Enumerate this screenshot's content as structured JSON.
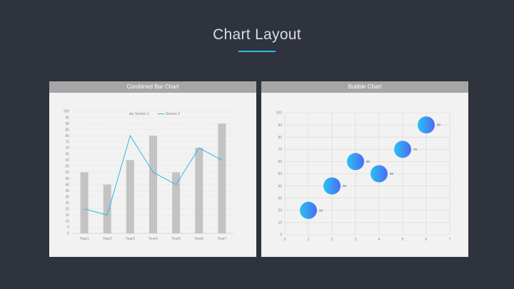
{
  "slide": {
    "title": "Chart Layout",
    "accent_color": "#2eb8e8"
  },
  "chart_data": [
    {
      "type": "bar",
      "title": "Combined Bar Chart",
      "categories": [
        "Year1",
        "Year2",
        "Year3",
        "Year4",
        "Year5",
        "Year6",
        "Year7"
      ],
      "series": [
        {
          "name": "Series 1",
          "kind": "bar",
          "color": "#c3c3c3",
          "values": [
            50,
            40,
            60,
            80,
            50,
            70,
            90
          ]
        },
        {
          "name": "Series 2",
          "kind": "line",
          "color": "#2eb8e8",
          "values": [
            20,
            15,
            80,
            50,
            40,
            70,
            60
          ]
        }
      ],
      "ylim": [
        0,
        100
      ],
      "y_ticks": [
        0,
        5,
        10,
        15,
        20,
        25,
        30,
        35,
        40,
        45,
        50,
        55,
        60,
        65,
        70,
        75,
        80,
        85,
        90,
        95,
        100
      ],
      "legend": "top-center",
      "grid": true
    },
    {
      "type": "scatter",
      "subtype": "bubble",
      "title": "Bubble Chart",
      "points": [
        {
          "x": 1,
          "y": 20,
          "label": "20"
        },
        {
          "x": 2,
          "y": 40,
          "label": "40"
        },
        {
          "x": 3,
          "y": 60,
          "label": "60"
        },
        {
          "x": 4,
          "y": 50,
          "label": "50"
        },
        {
          "x": 5,
          "y": 70,
          "label": "70"
        },
        {
          "x": 6,
          "y": 90,
          "label": "90"
        }
      ],
      "xlim": [
        0,
        7
      ],
      "ylim": [
        0,
        100
      ],
      "x_ticks": [
        0,
        1,
        2,
        3,
        4,
        5,
        6,
        7
      ],
      "y_ticks": [
        0,
        10,
        20,
        30,
        40,
        50,
        60,
        70,
        80,
        90,
        100
      ],
      "colors": [
        "#29c2f2",
        "#4a6cf5"
      ],
      "grid": true
    }
  ]
}
